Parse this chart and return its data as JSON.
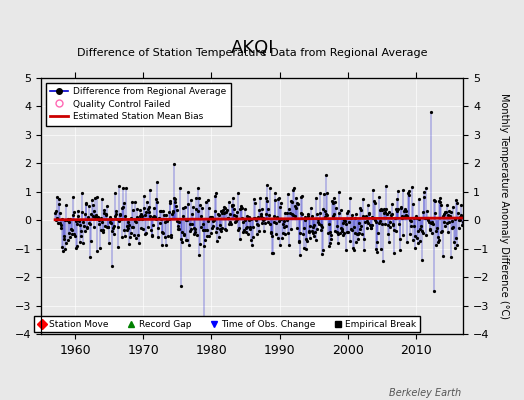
{
  "title": "AKQI",
  "subtitle": "Difference of Station Temperature Data from Regional Average",
  "ylabel": "Monthly Temperature Anomaly Difference (°C)",
  "xlabel_years": [
    1960,
    1970,
    1980,
    1990,
    2000,
    2010
  ],
  "xlim": [
    1955,
    2017
  ],
  "ylim": [
    -4,
    5
  ],
  "yticks": [
    -4,
    -3,
    -2,
    -1,
    0,
    1,
    2,
    3,
    4,
    5
  ],
  "bias_line_y": 0.05,
  "bias_slope": 0.001,
  "line_color": "#0000cc",
  "bias_color": "#cc0000",
  "qc_color": "#ff69b4",
  "marker_color": "#000000",
  "background_color": "#e8e8e8",
  "legend1_items": [
    "Difference from Regional Average",
    "Quality Control Failed",
    "Estimated Station Mean Bias"
  ],
  "legend2_items": [
    "Station Move",
    "Record Gap",
    "Time of Obs. Change",
    "Empirical Break"
  ],
  "watermark": "Berkeley Earth",
  "seed": 42
}
